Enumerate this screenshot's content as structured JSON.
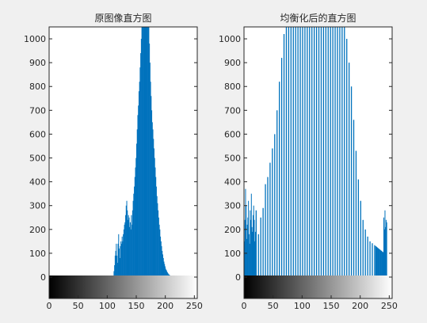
{
  "figure": {
    "background": "#f0f0f0",
    "axes_background": "#ffffff",
    "bar_color": "#0072bd"
  },
  "chart_data": [
    {
      "type": "bar",
      "title": "原图像直方图",
      "xlabel": "",
      "ylabel": "",
      "xlim": [
        0,
        255
      ],
      "ylim": [
        0,
        1050
      ],
      "yticks": [
        0,
        100,
        200,
        300,
        400,
        500,
        600,
        700,
        800,
        900,
        1000
      ],
      "xticks": [
        0,
        50,
        100,
        150,
        200,
        250
      ],
      "colorbar": "gray",
      "grid": false,
      "bin_width": 1,
      "x_range": [
        0,
        255
      ],
      "values": [
        0,
        0,
        0,
        0,
        0,
        0,
        0,
        0,
        0,
        0,
        0,
        0,
        0,
        0,
        0,
        0,
        0,
        0,
        0,
        0,
        0,
        0,
        0,
        0,
        0,
        0,
        0,
        0,
        0,
        0,
        0,
        0,
        0,
        0,
        0,
        0,
        0,
        0,
        0,
        0,
        0,
        0,
        0,
        0,
        0,
        0,
        0,
        0,
        0,
        0,
        0,
        0,
        0,
        0,
        0,
        0,
        0,
        0,
        0,
        0,
        0,
        0,
        0,
        0,
        0,
        0,
        0,
        0,
        0,
        0,
        0,
        0,
        0,
        0,
        0,
        0,
        0,
        0,
        0,
        0,
        0,
        0,
        0,
        0,
        0,
        0,
        0,
        0,
        0,
        0,
        0,
        0,
        0,
        0,
        0,
        0,
        0,
        0,
        0,
        0,
        0,
        0,
        0,
        0,
        0,
        0,
        0,
        0,
        0,
        0,
        5,
        25,
        50,
        90,
        110,
        140,
        90,
        60,
        140,
        180,
        120,
        80,
        130,
        150,
        140,
        170,
        150,
        180,
        200,
        220,
        230,
        260,
        300,
        320,
        280,
        240,
        260,
        250,
        210,
        230,
        200,
        260,
        220,
        280,
        320,
        350,
        380,
        420,
        460,
        500,
        560,
        620,
        680,
        720,
        780,
        820,
        880,
        940,
        1000,
        1050,
        1050,
        1050,
        1050,
        1050,
        1050,
        1050,
        1050,
        1050,
        1050,
        1050,
        1050,
        1050,
        980,
        900,
        820,
        760,
        700,
        650,
        620,
        580,
        540,
        500,
        460,
        420,
        380,
        340,
        310,
        280,
        250,
        220,
        200,
        170,
        150,
        130,
        110,
        95,
        80,
        65,
        55,
        45,
        35,
        30,
        25,
        20,
        16,
        12,
        10,
        8,
        6,
        5,
        4,
        3,
        2,
        2,
        2,
        1,
        1,
        1,
        1,
        1,
        0,
        0,
        0,
        0,
        0,
        0,
        0,
        0,
        0,
        0,
        0,
        0,
        0,
        0,
        0,
        0,
        0,
        0,
        0,
        0,
        0,
        0,
        0,
        0,
        0,
        0,
        0,
        0,
        0,
        0,
        0,
        0,
        0,
        0,
        0,
        0
      ]
    },
    {
      "type": "bar",
      "title": "均衡化后的直方图",
      "xlabel": "",
      "ylabel": "",
      "xlim": [
        0,
        255
      ],
      "ylim": [
        0,
        1050
      ],
      "yticks": [
        0,
        100,
        200,
        300,
        400,
        500,
        600,
        700,
        800,
        900,
        1000
      ],
      "xticks": [
        0,
        50,
        100,
        150,
        200,
        250
      ],
      "colorbar": "gray",
      "grid": false,
      "bin_width": 1,
      "x_range": [
        0,
        255
      ],
      "values": [
        150,
        240,
        370,
        300,
        160,
        220,
        250,
        320,
        180,
        140,
        280,
        240,
        350,
        210,
        190,
        260,
        300,
        240,
        150,
        190,
        280,
        230,
        290,
        220,
        180,
        240,
        300,
        270,
        250,
        310,
        260,
        300,
        290,
        360,
        320,
        340,
        390,
        330,
        370,
        400,
        420,
        450,
        430,
        470,
        480,
        500,
        520,
        490,
        540,
        560,
        580,
        620,
        600,
        650,
        680,
        720,
        700,
        740,
        760,
        800,
        820,
        850,
        880,
        900,
        920,
        950,
        970,
        1000,
        1020,
        1050,
        1050,
        1050,
        1050,
        1050,
        1050,
        1050,
        1050,
        1050,
        1050,
        1050,
        1050,
        1050,
        1050,
        1050,
        1050,
        1050,
        1050,
        1050,
        1050,
        1050,
        1050,
        1050,
        1050,
        1050,
        1050,
        1050,
        1050,
        1050,
        1050,
        1050,
        1050,
        1050,
        1050,
        1050,
        1050,
        1050,
        1050,
        1050,
        1050,
        1050,
        1050,
        1050,
        1050,
        1050,
        1050,
        1050,
        1050,
        1050,
        1050,
        1050,
        1050,
        1050,
        1050,
        1050,
        1050,
        1050,
        1050,
        1050,
        1050,
        1050,
        1050,
        1050,
        1050,
        1050,
        1050,
        1050,
        1050,
        1050,
        1050,
        1050,
        1050,
        1050,
        1050,
        1050,
        1050,
        1050,
        1050,
        1050,
        1050,
        1050,
        1050,
        1050,
        1050,
        1050,
        1050,
        1050,
        1050,
        1050,
        1050,
        1050,
        1050,
        1050,
        1050,
        1050,
        1050,
        1050,
        1050,
        1050,
        1050,
        1050,
        1050,
        1050,
        1050,
        1050,
        1040,
        1020,
        1000,
        980,
        960,
        930,
        900,
        880,
        850,
        820,
        800,
        760,
        730,
        700,
        660,
        630,
        600,
        560,
        530,
        500,
        470,
        440,
        410,
        380,
        360,
        340,
        320,
        300,
        280,
        260,
        240,
        230,
        220,
        210,
        200,
        190,
        180,
        175,
        170,
        165,
        160,
        155,
        150,
        148,
        146,
        144,
        142,
        140,
        138,
        136,
        134,
        132,
        130,
        128,
        126,
        124,
        122,
        120,
        118,
        116,
        114,
        112,
        110,
        108,
        106,
        104,
        250,
        200,
        280,
        210,
        240,
        230
      ],
      "sparse_every": 4
    }
  ]
}
